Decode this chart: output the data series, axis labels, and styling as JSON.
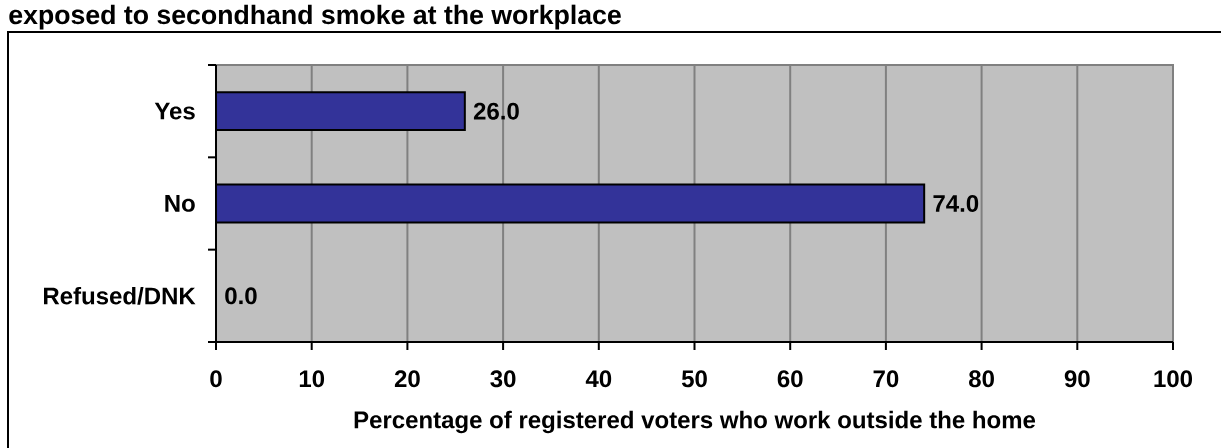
{
  "chart_data": {
    "type": "bar",
    "orientation": "horizontal",
    "title": "exposed to secondhand smoke at the workplace",
    "xlabel": "Percentage of registered voters who work outside the home",
    "categories": [
      "Yes",
      "No",
      "Refused/DNK"
    ],
    "values": [
      26.0,
      74.0,
      0.0
    ],
    "value_labels": [
      "26.0",
      "74.0",
      "0.0"
    ],
    "color": "#333399",
    "xlim": [
      0,
      100
    ],
    "xticks": [
      0,
      10,
      20,
      30,
      40,
      50,
      60,
      70,
      80,
      90,
      100
    ],
    "grid": "x"
  }
}
